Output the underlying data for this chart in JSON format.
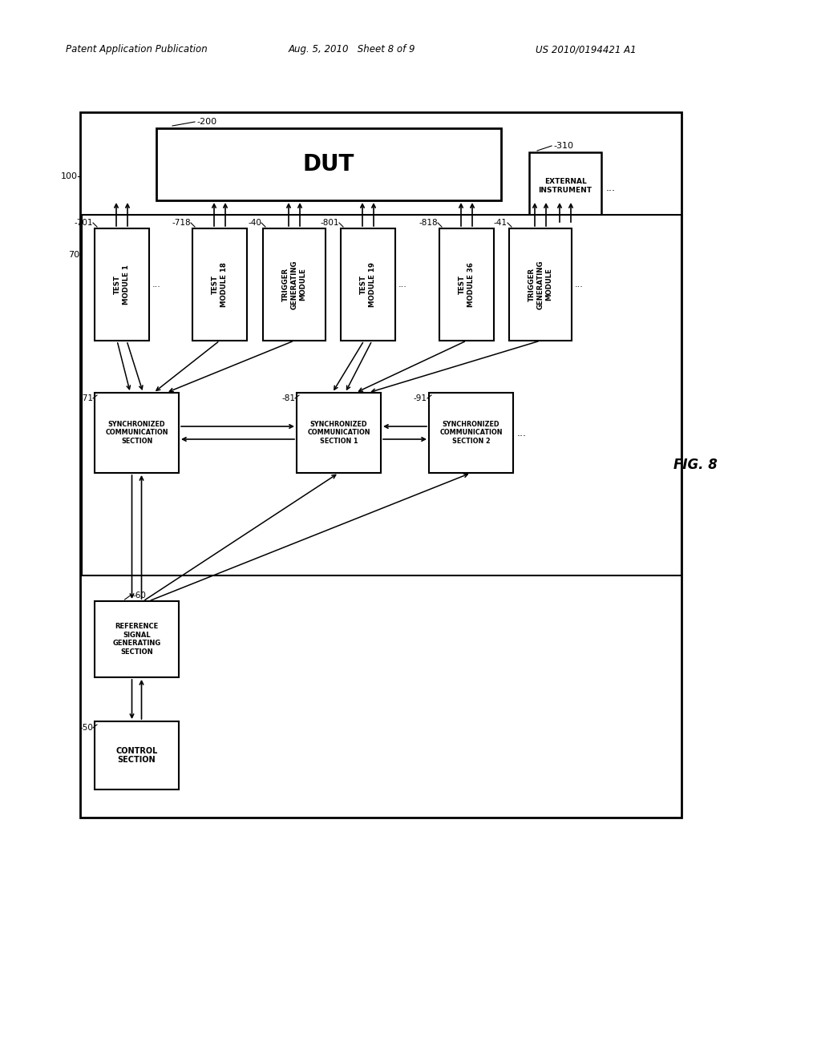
{
  "header_left": "Patent Application Publication",
  "header_center": "Aug. 5, 2010   Sheet 8 of 9",
  "header_right": "US 2010/0194421 A1",
  "fig_label": "FIG. 8",
  "bg_color": "#ffffff",
  "line_color": "#000000",
  "box_color": "#ffffff",
  "text_color": "#000000"
}
